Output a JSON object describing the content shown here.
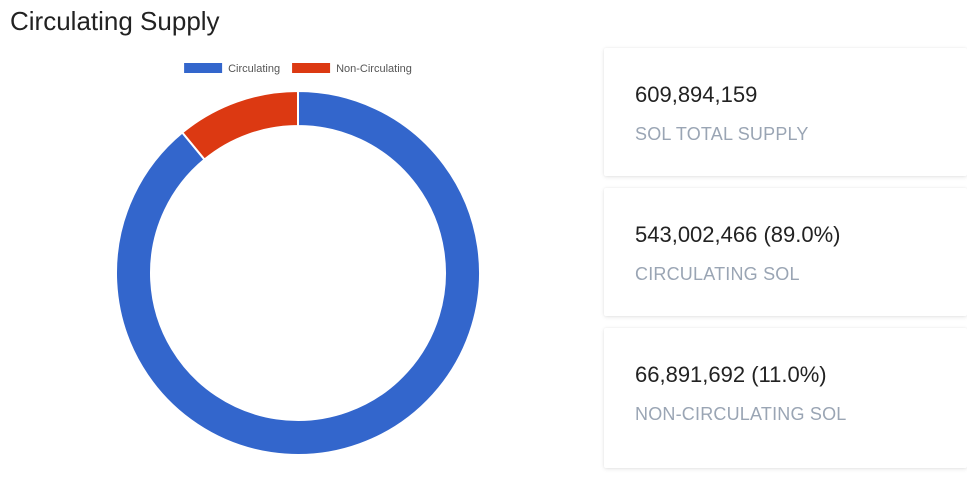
{
  "page": {
    "title": "Circulating Supply"
  },
  "chart_data": {
    "type": "pie",
    "donut": true,
    "categories": [
      "Circulating",
      "Non-Circulating"
    ],
    "values": [
      543002466,
      66891692
    ],
    "colors": [
      "#3366cc",
      "#dc3912"
    ],
    "legend_position": "top"
  },
  "stats": [
    {
      "value": "609,894,159",
      "label": "SOL TOTAL SUPPLY"
    },
    {
      "value": "543,002,466 (89.0%)",
      "label": "CIRCULATING SOL"
    },
    {
      "value": "66,891,692 (11.0%)",
      "label": "NON-CIRCULATING SOL"
    }
  ]
}
